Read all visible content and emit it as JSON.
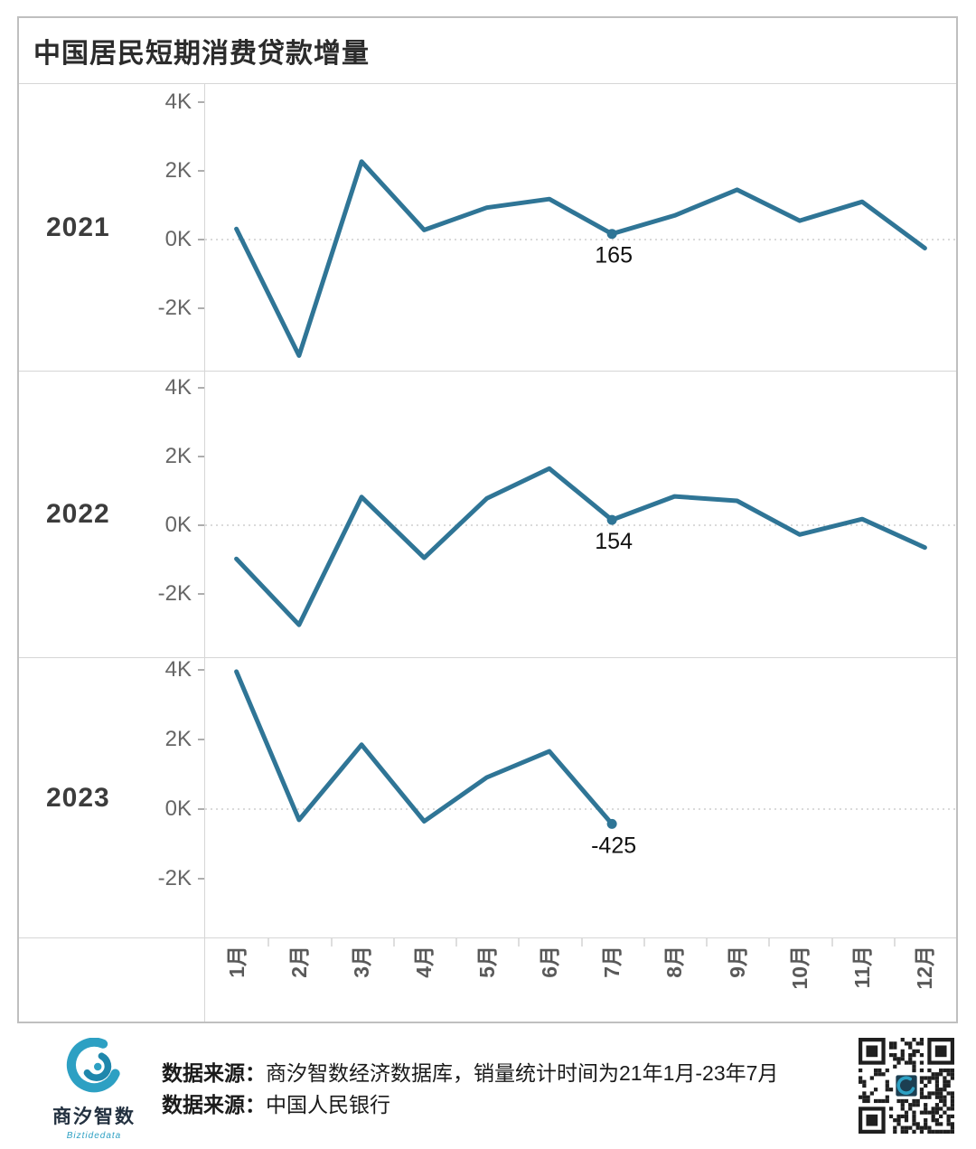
{
  "title": "中国居民短期消费贷款增量",
  "chart_data": {
    "type": "line",
    "title": "中国居民短期消费贷款增量",
    "categories": [
      "1月",
      "2月",
      "3月",
      "4月",
      "5月",
      "6月",
      "7月",
      "8月",
      "9月",
      "10月",
      "11月",
      "12月"
    ],
    "y_tick_labels": [
      "4K",
      "2K",
      "0K",
      "-2K"
    ],
    "y_tick_values": [
      4000,
      2000,
      0,
      -2000
    ],
    "ylim_approx": [
      -3900,
      4500
    ],
    "grid": "dotted zero line only",
    "legend_position": "row headers (year at left of each panel)",
    "unit_note": "values in same units as K-axis (thousands)",
    "line_color": "#2f7596",
    "series": [
      {
        "name": "2021",
        "values": [
          310,
          -3380,
          2270,
          280,
          930,
          1180,
          165,
          700,
          1450,
          550,
          1100,
          -250
        ],
        "annotation": {
          "category": "7月",
          "index": 6,
          "label": "165"
        }
      },
      {
        "name": "2022",
        "values": [
          -980,
          -2900,
          820,
          -950,
          780,
          1650,
          154,
          840,
          710,
          -270,
          180,
          -650
        ],
        "annotation": {
          "category": "7月",
          "index": 6,
          "label": "154"
        }
      },
      {
        "name": "2023",
        "values": [
          3950,
          -310,
          1850,
          -350,
          910,
          1660,
          -425
        ],
        "annotation": {
          "category": "7月",
          "index": 6,
          "label": "-425"
        }
      }
    ]
  },
  "footer": {
    "logo_icon": "wave-swirl-icon",
    "logo_name": "商汐智数",
    "logo_subtitle": "Biztidedata",
    "source_label_1": "数据来源：",
    "source_text_1": "商汐智数经济数据库，销量统计时间为21年1月-23年7月",
    "source_label_2": "数据来源：",
    "source_text_2": "中国人民银行",
    "qr_icon": "qr-code"
  },
  "colors": {
    "line": "#2f7596",
    "annotation_text": "#111111",
    "tick_text": "#666666",
    "year_text": "#3c3c3c",
    "month_text": "#595959",
    "border": "#bfbfbf",
    "divider": "#d6d6d6",
    "zero_line": "#c4c4c4",
    "logo_teal": "#2da0c3"
  }
}
